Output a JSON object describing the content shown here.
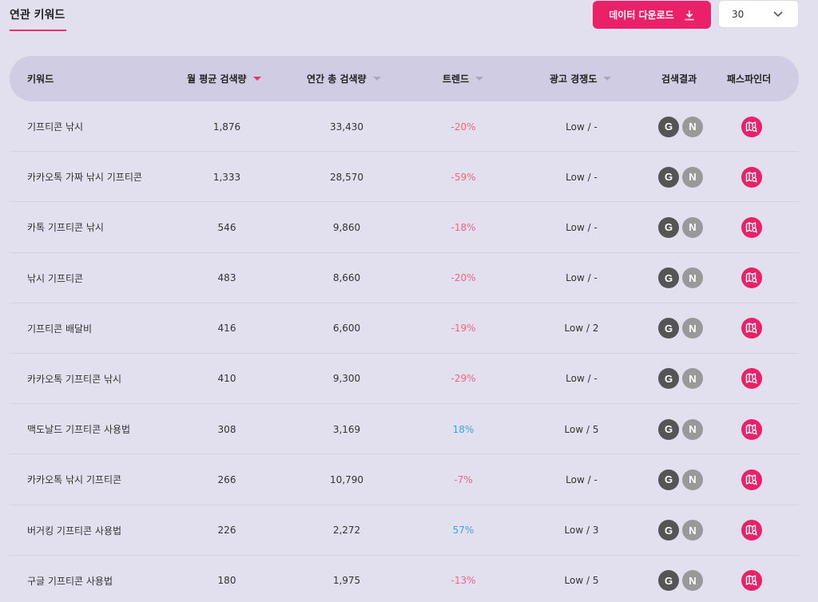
{
  "header": {
    "tab_title": "연관 키워드",
    "download_label": "데이터 다운로드",
    "page_size": "30"
  },
  "colors": {
    "accent": "#ea2168",
    "negative": "#f06686",
    "positive": "#3aa3e8",
    "background": "#e2e0ee",
    "header_bg": "#cfcce3"
  },
  "columns": {
    "keyword": "키워드",
    "monthly": "월 평균 검색량",
    "yearly": "연간 총 검색량",
    "trend": "트렌드",
    "competition": "광고 경쟁도",
    "search": "검색결과",
    "pathfinder": "패스파인더"
  },
  "icons": {
    "google": "G",
    "naver": "N"
  },
  "rows": [
    {
      "keyword": "기프티콘 낚시",
      "monthly": "1,876",
      "yearly": "33,430",
      "trend": "-20%",
      "trend_dir": "neg",
      "competition": "Low / -"
    },
    {
      "keyword": "카카오톡 가짜 낚시 기프티콘",
      "monthly": "1,333",
      "yearly": "28,570",
      "trend": "-59%",
      "trend_dir": "neg",
      "competition": "Low / -"
    },
    {
      "keyword": "카톡 기프티콘 낚시",
      "monthly": "546",
      "yearly": "9,860",
      "trend": "-18%",
      "trend_dir": "neg",
      "competition": "Low / -"
    },
    {
      "keyword": "낚시 기프티콘",
      "monthly": "483",
      "yearly": "8,660",
      "trend": "-20%",
      "trend_dir": "neg",
      "competition": "Low / -"
    },
    {
      "keyword": "기프티콘 배달비",
      "monthly": "416",
      "yearly": "6,600",
      "trend": "-19%",
      "trend_dir": "neg",
      "competition": "Low / 2"
    },
    {
      "keyword": "카카오톡 기프티콘 낚시",
      "monthly": "410",
      "yearly": "9,300",
      "trend": "-29%",
      "trend_dir": "neg",
      "competition": "Low / -"
    },
    {
      "keyword": "맥도날드 기프티콘 사용법",
      "monthly": "308",
      "yearly": "3,169",
      "trend": "18%",
      "trend_dir": "pos",
      "competition": "Low / 5"
    },
    {
      "keyword": "카카오톡 낚시 기프티콘",
      "monthly": "266",
      "yearly": "10,790",
      "trend": "-7%",
      "trend_dir": "neg",
      "competition": "Low / -"
    },
    {
      "keyword": "버거킹 기프티콘 사용법",
      "monthly": "226",
      "yearly": "2,272",
      "trend": "57%",
      "trend_dir": "pos",
      "competition": "Low / 3"
    },
    {
      "keyword": "구글 기프티콘 사용법",
      "monthly": "180",
      "yearly": "1,975",
      "trend": "-13%",
      "trend_dir": "neg",
      "competition": "Low / 5"
    }
  ]
}
